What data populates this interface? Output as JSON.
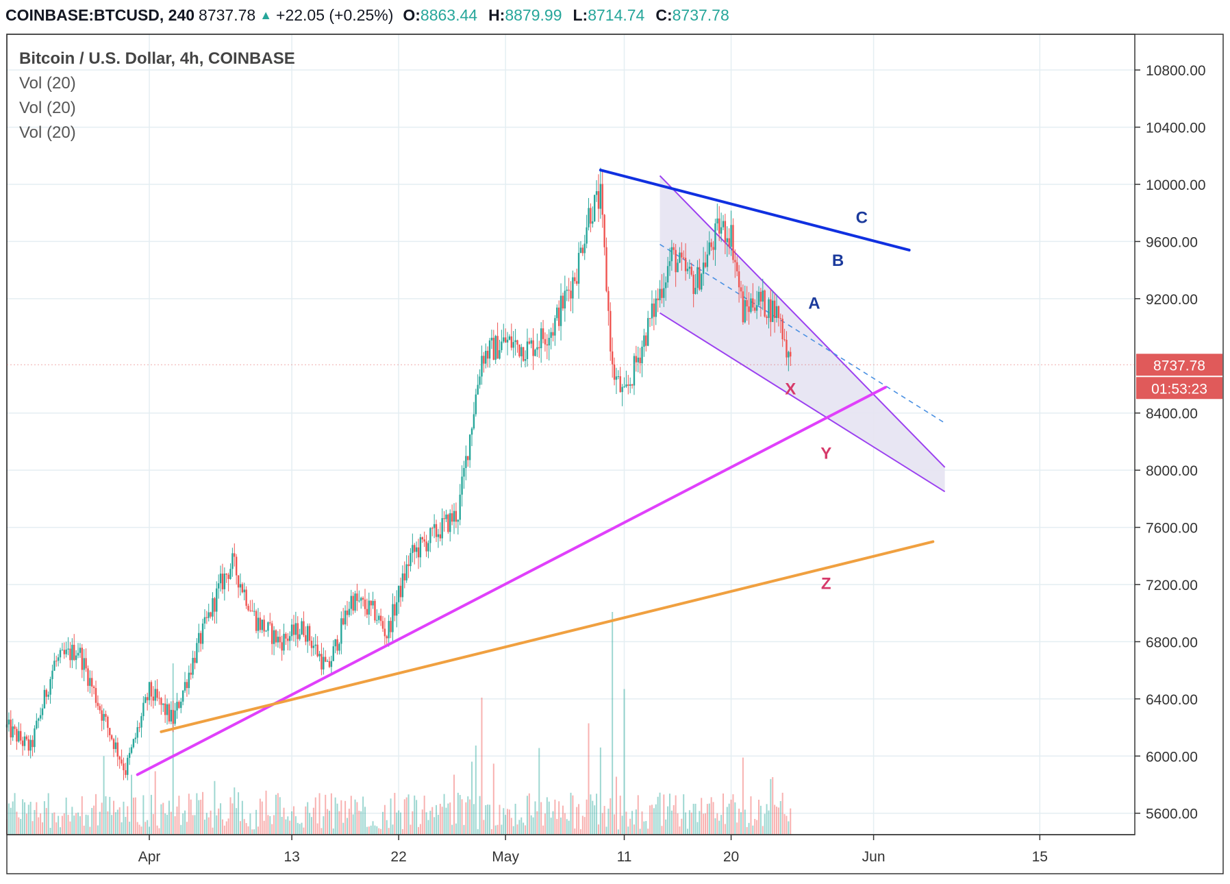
{
  "header": {
    "symbol": "COINBASE:BTCUSD, 240",
    "last": "8737.78",
    "change": "+22.05 (+0.25%)",
    "o_label": "O:",
    "o_value": "8863.44",
    "h_label": "H:",
    "h_value": "8879.99",
    "l_label": "L:",
    "l_value": "8714.74",
    "c_label": "C:",
    "c_value": "8737.78",
    "up_icon": "triangle-up-icon"
  },
  "legend": {
    "title": "Bitcoin / U.S. Dollar, 4h, COINBASE",
    "studies": [
      "Vol (20)",
      "Vol (20)",
      "Vol (20)"
    ]
  },
  "colors": {
    "up": "#26a69a",
    "down": "#ef5350",
    "trendline_blue": "#1030e0",
    "trendline_magenta": "#e040fb",
    "trendline_orange": "#f0a040",
    "channel": "#9b40f0",
    "channel_fill": "#e6e3f2",
    "price_tag": "#e05a5a"
  },
  "chart_data": {
    "type": "candlestick",
    "title": "Bitcoin / U.S. Dollar, 4h, COINBASE",
    "y_ticks": [
      "10800.00",
      "10400.00",
      "10000.00",
      "9600.00",
      "9200.00",
      "8400.00",
      "8000.00",
      "7600.00",
      "7200.00",
      "6800.00",
      "6400.00",
      "6000.00",
      "5600.00"
    ],
    "x_ticks": [
      "Apr",
      "13",
      "22",
      "May",
      "11",
      "20",
      "Jun",
      "15"
    ],
    "ylim": [
      5450,
      11050
    ],
    "last_price": "8737.78",
    "countdown": "01:53:23",
    "price_path": [
      [
        "2020-03-20",
        6200
      ],
      [
        "2020-03-22",
        6050
      ],
      [
        "2020-03-24",
        6650
      ],
      [
        "2020-03-26",
        6750
      ],
      [
        "2020-03-28",
        6300
      ],
      [
        "2020-03-30",
        5900
      ],
      [
        "2020-04-01",
        6450
      ],
      [
        "2020-04-03",
        6250
      ],
      [
        "2020-04-05",
        6750
      ],
      [
        "2020-04-07",
        7200
      ],
      [
        "2020-04-08",
        7350
      ],
      [
        "2020-04-10",
        6950
      ],
      [
        "2020-04-12",
        6800
      ],
      [
        "2020-04-14",
        6900
      ],
      [
        "2020-04-16",
        6600
      ],
      [
        "2020-04-18",
        7100
      ],
      [
        "2020-04-20",
        7000
      ],
      [
        "2020-04-21",
        6850
      ],
      [
        "2020-04-23",
        7400
      ],
      [
        "2020-04-25",
        7550
      ],
      [
        "2020-04-27",
        7700
      ],
      [
        "2020-04-29",
        8800
      ],
      [
        "2020-05-01",
        8900
      ],
      [
        "2020-05-03",
        8850
      ],
      [
        "2020-05-05",
        9000
      ],
      [
        "2020-05-07",
        9400
      ],
      [
        "2020-05-08",
        9800
      ],
      [
        "2020-05-09",
        9900
      ],
      [
        "2020-05-10",
        8700
      ],
      [
        "2020-05-11",
        8500
      ],
      [
        "2020-05-13",
        9000
      ],
      [
        "2020-05-15",
        9500
      ],
      [
        "2020-05-17",
        9300
      ],
      [
        "2020-05-19",
        9700
      ],
      [
        "2020-05-20",
        9650
      ],
      [
        "2020-05-21",
        9100
      ],
      [
        "2020-05-22",
        9200
      ],
      [
        "2020-05-24",
        9100
      ],
      [
        "2020-05-25",
        8737.78
      ]
    ],
    "volume_spikes": [
      [
        "2020-04-03",
        1
      ],
      [
        "2020-04-29",
        0.8
      ],
      [
        "2020-05-08",
        0.65
      ],
      [
        "2020-05-10",
        1.3
      ],
      [
        "2020-05-11",
        0.85
      ],
      [
        "2020-05-21",
        0.45
      ]
    ],
    "trendlines": [
      {
        "name": "C",
        "color": "#1030e0",
        "from": [
          "2020-05-09",
          10100
        ],
        "to": [
          "2020-06-04",
          9540
        ]
      },
      {
        "name": "Y",
        "color": "#e040fb",
        "from": [
          "2020-03-31",
          5870
        ],
        "to": [
          "2020-06-02",
          8580
        ]
      },
      {
        "name": "Z",
        "color": "#f0a040",
        "from": [
          "2020-04-02",
          6170
        ],
        "to": [
          "2020-06-06",
          7500
        ]
      }
    ],
    "channel": {
      "upper": {
        "from": [
          "2020-05-14",
          10060
        ],
        "to": [
          "2020-06-07",
          8020
        ]
      },
      "mid": {
        "from": [
          "2020-05-14",
          9580
        ],
        "to": [
          "2020-06-07",
          8330
        ]
      },
      "lower": {
        "from": [
          "2020-05-14",
          9100
        ],
        "to": [
          "2020-06-07",
          7850
        ]
      }
    },
    "annotations": [
      {
        "text": "C",
        "color": "#1b3a9c",
        "at": [
          "2020-05-31",
          9730
        ]
      },
      {
        "text": "B",
        "color": "#1b3a9c",
        "at": [
          "2020-05-29",
          9430
        ]
      },
      {
        "text": "A",
        "color": "#1b3a9c",
        "at": [
          "2020-05-27",
          9130
        ]
      },
      {
        "text": "X",
        "color": "#d63a6a",
        "at": [
          "2020-05-25",
          8530
        ]
      },
      {
        "text": "Y",
        "color": "#d63a6a",
        "at": [
          "2020-05-28",
          8080
        ]
      },
      {
        "text": "Z",
        "color": "#d63a6a",
        "at": [
          "2020-05-28",
          7170
        ]
      }
    ]
  }
}
